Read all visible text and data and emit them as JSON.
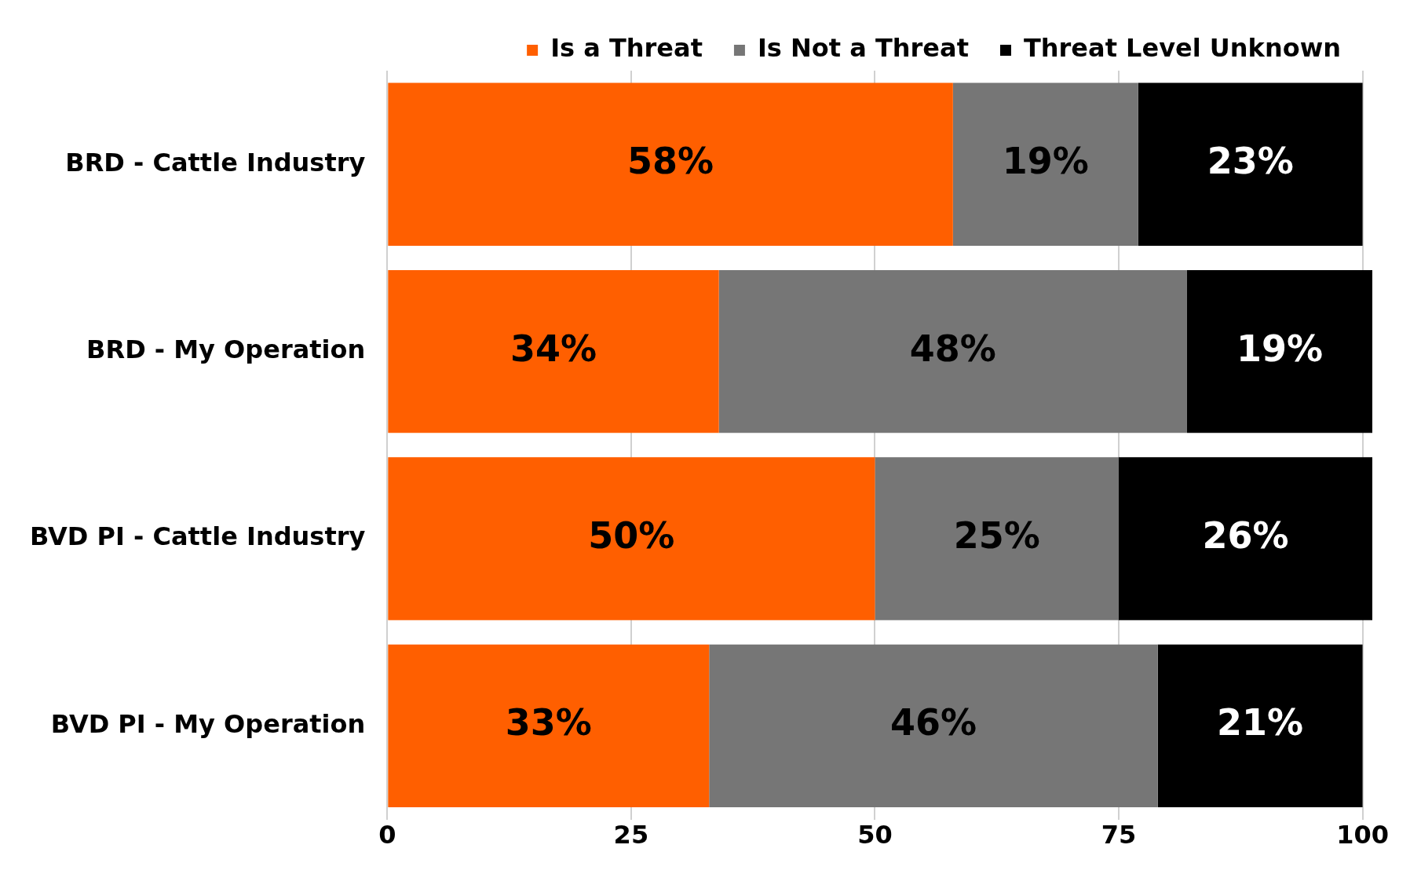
{
  "chart_data": {
    "type": "bar",
    "orientation": "horizontal",
    "stacked": true,
    "categories": [
      "BRD - Cattle Industry",
      "BRD - My Operation",
      "BVD PI - Cattle Industry",
      "BVD PI - My Operation"
    ],
    "series": [
      {
        "name": "Is a Threat",
        "color": "#ff5f00",
        "values": [
          58,
          34,
          50,
          33
        ],
        "value_labels": [
          "58%",
          "34%",
          "50%",
          "33%"
        ]
      },
      {
        "name": "Is Not a Threat",
        "color": "#767676",
        "values": [
          19,
          48,
          25,
          46
        ],
        "value_labels": [
          "19%",
          "48%",
          "25%",
          "46%"
        ]
      },
      {
        "name": "Threat Level Unknown",
        "color": "#000000",
        "values": [
          23,
          19,
          26,
          21
        ],
        "value_labels": [
          "23%",
          "19%",
          "26%",
          "21%"
        ]
      }
    ],
    "xlim": [
      0,
      101
    ],
    "xticks": [
      0,
      25,
      50,
      75,
      100
    ],
    "grid": "x",
    "legend": "top right"
  }
}
